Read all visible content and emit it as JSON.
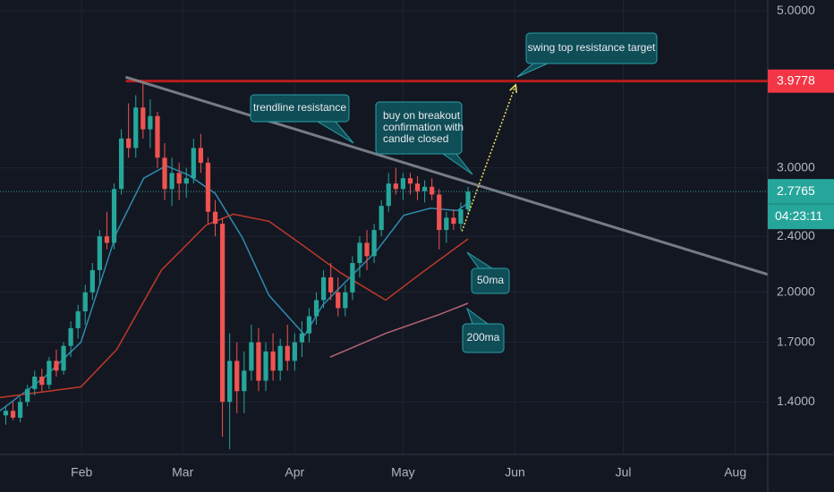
{
  "chart_data": {
    "type": "candlestick",
    "log_scale": true,
    "grid": true,
    "xlim": [
      8.4,
      221
    ],
    "ylim": [
      1.18,
      5.18
    ],
    "xticks": [
      {
        "value": 31,
        "label": "Feb"
      },
      {
        "value": 59,
        "label": "Mar"
      },
      {
        "value": 90,
        "label": "Apr"
      },
      {
        "value": 120,
        "label": "May"
      },
      {
        "value": 151,
        "label": "Jun"
      },
      {
        "value": 181,
        "label": "Jul"
      },
      {
        "value": 212,
        "label": "Aug"
      }
    ],
    "yticks": [
      {
        "value": 1.4,
        "label": "1.4000"
      },
      {
        "value": 1.7,
        "label": "1.7000"
      },
      {
        "value": 2.0,
        "label": "2.0000"
      },
      {
        "value": 2.4,
        "label": "2.4000"
      },
      {
        "value": 3.0,
        "label": "3.0000"
      },
      {
        "value": 5.0,
        "label": "5.0000"
      }
    ],
    "up_color": "#26a69a",
    "down_color": "#ef5350",
    "candles": {
      "x": [
        10,
        12,
        14,
        16,
        18,
        20,
        22,
        24,
        26,
        28,
        30,
        32,
        34,
        36,
        38,
        40,
        42,
        44,
        46,
        48,
        50,
        52,
        54,
        56,
        58,
        60,
        62,
        64,
        66,
        68,
        70,
        72,
        74,
        76,
        78,
        80,
        82,
        84,
        86,
        88,
        90,
        92,
        94,
        96,
        98,
        100,
        102,
        104,
        106,
        108,
        110,
        112,
        114,
        116,
        118,
        120,
        122,
        124,
        126,
        128,
        130,
        132,
        134,
        136,
        138
      ],
      "open": [
        1.34,
        1.36,
        1.33,
        1.4,
        1.46,
        1.52,
        1.48,
        1.6,
        1.55,
        1.68,
        1.78,
        1.88,
        2.0,
        2.15,
        2.4,
        2.35,
        2.8,
        3.3,
        3.2,
        3.65,
        3.4,
        3.55,
        3.1,
        2.8,
        2.95,
        2.85,
        2.9,
        3.2,
        3.05,
        2.6,
        2.5,
        1.4,
        1.6,
        1.45,
        1.55,
        1.7,
        1.5,
        1.65,
        1.55,
        1.68,
        1.6,
        1.7,
        1.75,
        1.85,
        1.95,
        2.1,
        2.0,
        1.9,
        2.0,
        2.2,
        2.35,
        2.25,
        2.45,
        2.65,
        2.85,
        2.8,
        2.9,
        2.85,
        2.78,
        2.82,
        2.75,
        2.45,
        2.55,
        2.5,
        2.62
      ],
      "high": [
        1.38,
        1.4,
        1.42,
        1.48,
        1.55,
        1.56,
        1.62,
        1.66,
        1.7,
        1.82,
        1.92,
        2.05,
        2.2,
        2.45,
        2.6,
        2.85,
        3.4,
        3.7,
        3.8,
        3.95,
        3.75,
        3.6,
        3.25,
        3.1,
        3.05,
        3.0,
        3.3,
        3.35,
        3.1,
        2.7,
        2.55,
        1.75,
        1.7,
        1.65,
        1.8,
        1.78,
        1.7,
        1.75,
        1.72,
        1.8,
        1.75,
        1.82,
        1.9,
        2.0,
        2.15,
        2.2,
        2.1,
        2.05,
        2.25,
        2.4,
        2.45,
        2.5,
        2.7,
        2.95,
        3.0,
        2.95,
        2.95,
        2.92,
        2.88,
        2.9,
        2.8,
        2.6,
        2.62,
        2.68,
        2.82
      ],
      "low": [
        1.3,
        1.32,
        1.31,
        1.38,
        1.43,
        1.45,
        1.46,
        1.52,
        1.53,
        1.62,
        1.72,
        1.8,
        1.95,
        2.05,
        2.3,
        2.3,
        2.75,
        3.1,
        3.1,
        3.3,
        3.2,
        3.0,
        2.7,
        2.65,
        2.7,
        2.72,
        2.85,
        2.95,
        2.5,
        2.4,
        1.25,
        1.2,
        1.35,
        1.35,
        1.5,
        1.45,
        1.45,
        1.5,
        1.5,
        1.55,
        1.55,
        1.62,
        1.7,
        1.8,
        1.9,
        1.95,
        1.85,
        1.85,
        1.95,
        2.1,
        2.15,
        2.2,
        2.4,
        2.6,
        2.75,
        2.7,
        2.75,
        2.7,
        2.68,
        2.7,
        2.3,
        2.35,
        2.45,
        2.45,
        2.58
      ],
      "close": [
        1.36,
        1.33,
        1.4,
        1.46,
        1.52,
        1.48,
        1.6,
        1.55,
        1.68,
        1.78,
        1.88,
        2.0,
        2.15,
        2.4,
        2.35,
        2.8,
        3.3,
        3.2,
        3.65,
        3.4,
        3.55,
        3.1,
        2.8,
        2.95,
        2.85,
        2.9,
        3.2,
        3.05,
        2.6,
        2.5,
        1.4,
        1.6,
        1.45,
        1.55,
        1.7,
        1.5,
        1.65,
        1.55,
        1.68,
        1.6,
        1.7,
        1.75,
        1.85,
        1.95,
        2.1,
        2.0,
        1.9,
        2.0,
        2.2,
        2.35,
        2.25,
        2.45,
        2.65,
        2.85,
        2.8,
        2.9,
        2.85,
        2.78,
        2.82,
        2.75,
        2.45,
        2.55,
        2.5,
        2.62,
        2.7765
      ]
    },
    "lines": [
      {
        "color": "#2e8bb0",
        "x": [
          8.4,
          20.9,
          30.8,
          40.7,
          48.2,
          54.4,
          60.6,
          68,
          75.5,
          82.9,
          92.8,
          97.8,
          105.3,
          112.7,
          120.2,
          127.6,
          135,
          138.8
        ],
        "values": [
          1.36,
          1.52,
          1.7,
          2.43,
          2.9,
          3.02,
          2.93,
          2.76,
          2.39,
          1.98,
          1.74,
          1.92,
          2.1,
          2.29,
          2.57,
          2.63,
          2.61,
          2.69
        ]
      },
      {
        "color": "#c0392b",
        "x": [
          8.4,
          30.8,
          40.7,
          53.1,
          65.5,
          73,
          82.9,
          92.8,
          102.8,
          115.2,
          125.1,
          138
        ],
        "values": [
          1.42,
          1.47,
          1.66,
          2.15,
          2.49,
          2.58,
          2.52,
          2.32,
          2.13,
          1.95,
          2.13,
          2.38
        ]
      },
      {
        "color": "#b56576",
        "x": [
          99.8,
          115.2,
          130,
          138
        ],
        "values": [
          1.62,
          1.75,
          1.86,
          1.93
        ]
      }
    ],
    "resistance": {
      "value": 3.9778,
      "color": "#b71c1c",
      "x": [
        43.2,
        221
      ]
    },
    "trendline": {
      "color": "#8a8d96",
      "x": [
        43.2,
        221
      ],
      "values": [
        4.03,
        2.12
      ]
    },
    "arrow": {
      "color": "#f5e663",
      "x": [
        136.3,
        151.2
      ],
      "values": [
        2.44,
        3.93
      ]
    },
    "current_price": {
      "value": 2.7765,
      "countdown": "04:23:11"
    },
    "annotations": [
      {
        "lines": [
          "trendline resistance"
        ]
      },
      {
        "lines": [
          "buy on breakout",
          "confirmation with",
          "candle closed"
        ]
      },
      {
        "lines": [
          "swing top resistance target"
        ]
      },
      {
        "lines": [
          "50ma"
        ]
      },
      {
        "lines": [
          "200ma"
        ]
      }
    ]
  }
}
